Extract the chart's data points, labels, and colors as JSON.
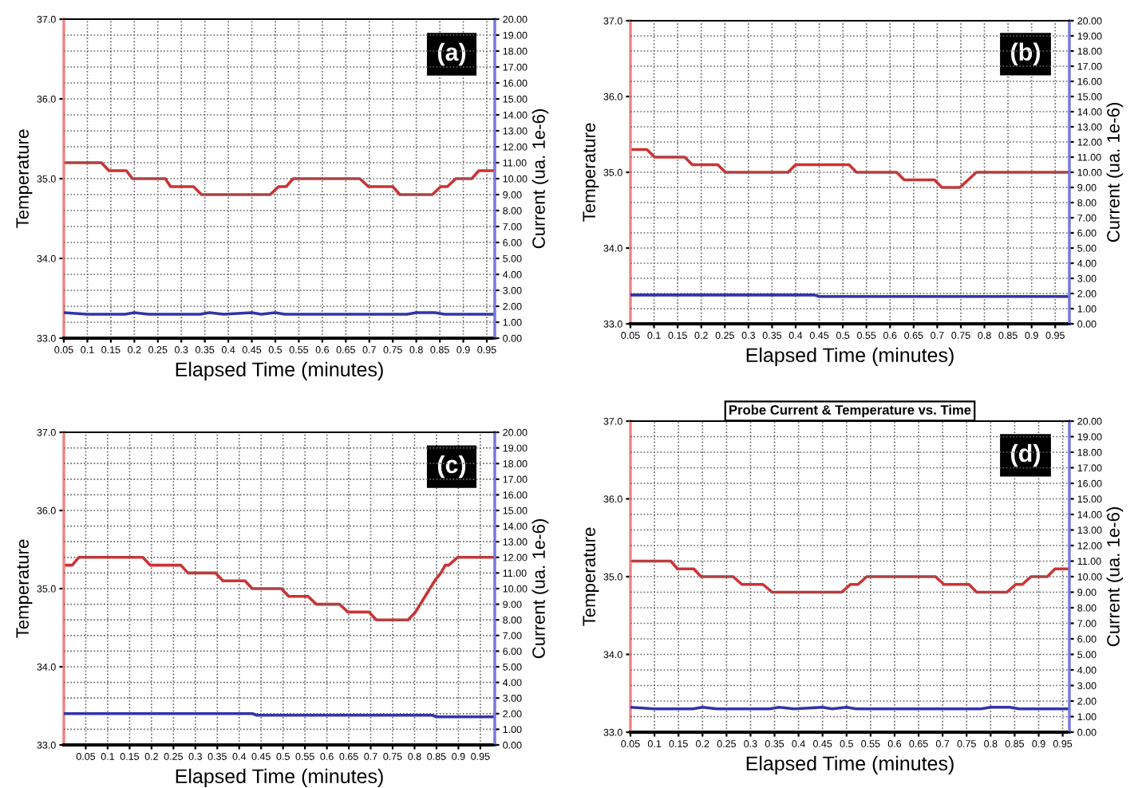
{
  "chart_data": [
    {
      "type": "line",
      "xlabel": "Elapsed Time (minutes)",
      "ylabel": "Temperature",
      "y2label": "Current (ua. 1e-6)",
      "annotations": [
        "(a)"
      ],
      "grid": true,
      "xlim": [
        0.05,
        0.967
      ],
      "xticks": [
        0.05,
        0.1,
        0.15,
        0.2,
        0.25,
        0.3,
        0.35,
        0.4,
        0.45,
        0.5,
        0.55,
        0.6,
        0.65,
        0.7,
        0.75,
        0.8,
        0.85,
        0.9,
        0.95
      ],
      "ylim": [
        33.0,
        37.0
      ],
      "yticks": [
        {
          "value": 33,
          "label": "33.0"
        },
        {
          "value": 34,
          "label": "34.0"
        },
        {
          "value": 35,
          "label": "35.0"
        },
        {
          "value": 36,
          "label": "36.0"
        },
        {
          "value": 37,
          "label": "37.0"
        }
      ],
      "y2lim": [
        0,
        20
      ],
      "y2ticks": [
        {
          "value": 0,
          "label": "0.00"
        },
        {
          "value": 1,
          "label": "1.00"
        },
        {
          "value": 2,
          "label": "2.00"
        },
        {
          "value": 3,
          "label": "3.00"
        },
        {
          "value": 4,
          "label": "4.00"
        },
        {
          "value": 5,
          "label": "5.00"
        },
        {
          "value": 6,
          "label": "6.00"
        },
        {
          "value": 7,
          "label": "7.00"
        },
        {
          "value": 8,
          "label": "8.00"
        },
        {
          "value": 9,
          "label": "9.00"
        },
        {
          "value": 10,
          "label": "10.00"
        },
        {
          "value": 11,
          "label": "11.00"
        },
        {
          "value": 12,
          "label": "12.00"
        },
        {
          "value": 13,
          "label": "13.00"
        },
        {
          "value": 14,
          "label": "14.00"
        },
        {
          "value": 15,
          "label": "15.00"
        },
        {
          "value": 16,
          "label": "16.00"
        },
        {
          "value": 17,
          "label": "17.00"
        },
        {
          "value": 18,
          "label": "18.00"
        },
        {
          "value": 19,
          "label": "19.00"
        },
        {
          "value": 20,
          "label": "20.00"
        }
      ],
      "series": [
        {
          "color": "#cc3333",
          "axis": "y",
          "x": [
            0.05,
            0.13,
            0.146,
            0.183,
            0.196,
            0.266,
            0.277,
            0.326,
            0.343,
            0.489,
            0.507,
            0.523,
            0.538,
            0.68,
            0.698,
            0.75,
            0.765,
            0.834,
            0.852,
            0.866,
            0.884,
            0.918,
            0.933,
            0.967
          ],
          "values": [
            35.2,
            35.2,
            35.1,
            35.1,
            35.0,
            35.0,
            34.9,
            34.9,
            34.8,
            34.8,
            34.9,
            34.9,
            35.0,
            35.0,
            34.9,
            34.9,
            34.8,
            34.8,
            34.9,
            34.9,
            35.0,
            35.0,
            35.1,
            35.1
          ]
        },
        {
          "color": "#3333aa",
          "axis": "y2",
          "x": [
            0.05,
            0.1,
            0.18,
            0.2,
            0.23,
            0.34,
            0.36,
            0.39,
            0.45,
            0.47,
            0.5,
            0.52,
            0.78,
            0.8,
            0.84,
            0.86,
            0.967
          ],
          "values": [
            1.6,
            1.5,
            1.5,
            1.6,
            1.5,
            1.5,
            1.6,
            1.5,
            1.6,
            1.5,
            1.6,
            1.5,
            1.5,
            1.6,
            1.6,
            1.5,
            1.5
          ]
        }
      ]
    },
    {
      "type": "line",
      "xlabel": "Elapsed Time (minutes)",
      "ylabel": "Temperature",
      "y2label": "Current (ua. 1e-6)",
      "annotations": [
        "(b)"
      ],
      "grid": true,
      "xlim": [
        0.05,
        0.98
      ],
      "xticks": [
        0.05,
        0.1,
        0.15,
        0.2,
        0.25,
        0.3,
        0.35,
        0.4,
        0.45,
        0.5,
        0.55,
        0.6,
        0.65,
        0.7,
        0.75,
        0.8,
        0.85,
        0.9,
        0.95
      ],
      "ylim": [
        33.0,
        37.0
      ],
      "yticks": [
        {
          "value": 33,
          "label": "33.0"
        },
        {
          "value": 34,
          "label": "34.0"
        },
        {
          "value": 35,
          "label": "35.0"
        },
        {
          "value": 36,
          "label": "36.0"
        },
        {
          "value": 37,
          "label": "37.0"
        }
      ],
      "y2lim": [
        0,
        20
      ],
      "y2ticks": [
        {
          "value": 0,
          "label": "0.00"
        },
        {
          "value": 1,
          "label": "1.00"
        },
        {
          "value": 2,
          "label": "2.00"
        },
        {
          "value": 3,
          "label": "3.00"
        },
        {
          "value": 4,
          "label": "4.00"
        },
        {
          "value": 5,
          "label": "5.00"
        },
        {
          "value": 6,
          "label": "6.00"
        },
        {
          "value": 7,
          "label": "7.00"
        },
        {
          "value": 8,
          "label": "8.00"
        },
        {
          "value": 9,
          "label": "9.00"
        },
        {
          "value": 10,
          "label": "10.00"
        },
        {
          "value": 11,
          "label": "11.00"
        },
        {
          "value": 12,
          "label": "12.00"
        },
        {
          "value": 13,
          "label": "13.00"
        },
        {
          "value": 14,
          "label": "14.00"
        },
        {
          "value": 15,
          "label": "15.00"
        },
        {
          "value": 16,
          "label": "16.00"
        },
        {
          "value": 17,
          "label": "17.00"
        },
        {
          "value": 18,
          "label": "18.00"
        },
        {
          "value": 19,
          "label": "19.00"
        },
        {
          "value": 20,
          "label": "20.00"
        }
      ],
      "series": [
        {
          "color": "#cc3333",
          "axis": "y",
          "x": [
            0.05,
            0.085,
            0.101,
            0.165,
            0.181,
            0.235,
            0.251,
            0.384,
            0.4,
            0.513,
            0.529,
            0.614,
            0.63,
            0.694,
            0.71,
            0.748,
            0.783,
            0.98
          ],
          "values": [
            35.3,
            35.3,
            35.2,
            35.2,
            35.1,
            35.1,
            35.0,
            35.0,
            35.1,
            35.1,
            35.0,
            35.0,
            34.9,
            34.9,
            34.8,
            34.8,
            35.0,
            35.0
          ]
        },
        {
          "color": "#3333aa",
          "axis": "y2",
          "x": [
            0.05,
            0.44,
            0.45,
            0.98
          ],
          "values": [
            1.9,
            1.9,
            1.8,
            1.8
          ]
        }
      ]
    },
    {
      "type": "line",
      "xlabel": "Elapsed Time (minutes)",
      "ylabel": "Temperature",
      "y2label": "Current (ua. 1e-6)",
      "annotations": [
        "(c)"
      ],
      "grid": true,
      "xlim": [
        0.0,
        0.983
      ],
      "xticks": [
        0.05,
        0.1,
        0.15,
        0.2,
        0.25,
        0.3,
        0.35,
        0.4,
        0.45,
        0.5,
        0.55,
        0.6,
        0.65,
        0.7,
        0.75,
        0.8,
        0.85,
        0.9,
        0.95
      ],
      "ylim": [
        33.0,
        37.0
      ],
      "yticks": [
        {
          "value": 33,
          "label": "33.0"
        },
        {
          "value": 34,
          "label": "34.0"
        },
        {
          "value": 35,
          "label": "35.0"
        },
        {
          "value": 36,
          "label": "36.0"
        },
        {
          "value": 37,
          "label": "37.0"
        }
      ],
      "y2lim": [
        0,
        20
      ],
      "y2ticks": [
        {
          "value": 0,
          "label": "0.00"
        },
        {
          "value": 1,
          "label": "1.00"
        },
        {
          "value": 2,
          "label": "2.00"
        },
        {
          "value": 3,
          "label": "3.00"
        },
        {
          "value": 4,
          "label": "4.00"
        },
        {
          "value": 5,
          "label": "5.00"
        },
        {
          "value": 6,
          "label": "6.00"
        },
        {
          "value": 7,
          "label": "7.00"
        },
        {
          "value": 8,
          "label": "8.00"
        },
        {
          "value": 9,
          "label": "9.00"
        },
        {
          "value": 10,
          "label": "10.00"
        },
        {
          "value": 11,
          "label": "11.00"
        },
        {
          "value": 12,
          "label": "12.00"
        },
        {
          "value": 13,
          "label": "13.00"
        },
        {
          "value": 14,
          "label": "14.00"
        },
        {
          "value": 15,
          "label": "15.00"
        },
        {
          "value": 16,
          "label": "16.00"
        },
        {
          "value": 17,
          "label": "17.00"
        },
        {
          "value": 18,
          "label": "18.00"
        },
        {
          "value": 19,
          "label": "19.00"
        },
        {
          "value": 20,
          "label": "20.00"
        }
      ],
      "series": [
        {
          "color": "#cc3333",
          "axis": "y",
          "x": [
            0.0,
            0.019,
            0.034,
            0.18,
            0.197,
            0.267,
            0.283,
            0.346,
            0.363,
            0.413,
            0.43,
            0.496,
            0.513,
            0.557,
            0.576,
            0.629,
            0.648,
            0.696,
            0.713,
            0.785,
            0.802,
            0.824,
            0.846,
            0.86,
            0.87,
            0.878,
            0.898,
            0.983
          ],
          "values": [
            35.3,
            35.3,
            35.4,
            35.4,
            35.3,
            35.3,
            35.2,
            35.2,
            35.1,
            35.1,
            35.0,
            35.0,
            34.9,
            34.9,
            34.8,
            34.8,
            34.7,
            34.7,
            34.6,
            34.6,
            34.7,
            34.9,
            35.1,
            35.2,
            35.3,
            35.3,
            35.4,
            35.4
          ]
        },
        {
          "color": "#3333aa",
          "axis": "y2",
          "x": [
            0.0,
            0.43,
            0.44,
            0.84,
            0.85,
            0.983
          ],
          "values": [
            2.0,
            2.0,
            1.9,
            1.9,
            1.8,
            1.8
          ]
        }
      ]
    },
    {
      "type": "line",
      "title": "Probe Current & Temperature vs. Time",
      "xlabel": "Elapsed Time (minutes)",
      "ylabel": "Temperature",
      "y2label": "Current (ua. 1e-6)",
      "annotations": [
        "(d)"
      ],
      "grid": true,
      "xlim": [
        0.05,
        0.964
      ],
      "xticks": [
        0.05,
        0.1,
        0.15,
        0.2,
        0.25,
        0.3,
        0.35,
        0.4,
        0.45,
        0.5,
        0.55,
        0.6,
        0.65,
        0.7,
        0.75,
        0.8,
        0.85,
        0.9,
        0.95
      ],
      "ylim": [
        33.0,
        37.0
      ],
      "yticks": [
        {
          "value": 33,
          "label": "33.0"
        },
        {
          "value": 34,
          "label": "34.0"
        },
        {
          "value": 35,
          "label": "35.0"
        },
        {
          "value": 36,
          "label": "36.0"
        },
        {
          "value": 37,
          "label": "37.0"
        }
      ],
      "y2lim": [
        0,
        20
      ],
      "y2ticks": [
        {
          "value": 0,
          "label": "0.00"
        },
        {
          "value": 1,
          "label": "1.00"
        },
        {
          "value": 2,
          "label": "2.00"
        },
        {
          "value": 3,
          "label": "3.00"
        },
        {
          "value": 4,
          "label": "4.00"
        },
        {
          "value": 5,
          "label": "5.00"
        },
        {
          "value": 6,
          "label": "6.00"
        },
        {
          "value": 7,
          "label": "7.00"
        },
        {
          "value": 8,
          "label": "8.00"
        },
        {
          "value": 9,
          "label": "9.00"
        },
        {
          "value": 10,
          "label": "10.00"
        },
        {
          "value": 11,
          "label": "11.00"
        },
        {
          "value": 12,
          "label": "12.00"
        },
        {
          "value": 13,
          "label": "13.00"
        },
        {
          "value": 14,
          "label": "14.00"
        },
        {
          "value": 15,
          "label": "15.00"
        },
        {
          "value": 16,
          "label": "16.00"
        },
        {
          "value": 17,
          "label": "17.00"
        },
        {
          "value": 18,
          "label": "18.00"
        },
        {
          "value": 19,
          "label": "19.00"
        },
        {
          "value": 20,
          "label": "20.00"
        }
      ],
      "series": [
        {
          "color": "#cc3333",
          "axis": "y",
          "x": [
            0.05,
            0.134,
            0.148,
            0.182,
            0.197,
            0.264,
            0.282,
            0.326,
            0.345,
            0.49,
            0.508,
            0.524,
            0.542,
            0.685,
            0.703,
            0.755,
            0.771,
            0.834,
            0.852,
            0.866,
            0.884,
            0.918,
            0.934,
            0.964
          ],
          "values": [
            35.2,
            35.2,
            35.1,
            35.1,
            35.0,
            35.0,
            34.9,
            34.9,
            34.8,
            34.8,
            34.9,
            34.9,
            35.0,
            35.0,
            34.9,
            34.9,
            34.8,
            34.8,
            34.9,
            34.9,
            35.0,
            35.0,
            35.1,
            35.1
          ]
        },
        {
          "color": "#3333aa",
          "axis": "y2",
          "x": [
            0.05,
            0.1,
            0.18,
            0.2,
            0.23,
            0.34,
            0.36,
            0.39,
            0.45,
            0.47,
            0.5,
            0.52,
            0.78,
            0.8,
            0.84,
            0.86,
            0.964
          ],
          "values": [
            1.6,
            1.5,
            1.5,
            1.6,
            1.5,
            1.5,
            1.6,
            1.5,
            1.6,
            1.5,
            1.6,
            1.5,
            1.5,
            1.6,
            1.6,
            1.5,
            1.5
          ]
        }
      ]
    }
  ]
}
